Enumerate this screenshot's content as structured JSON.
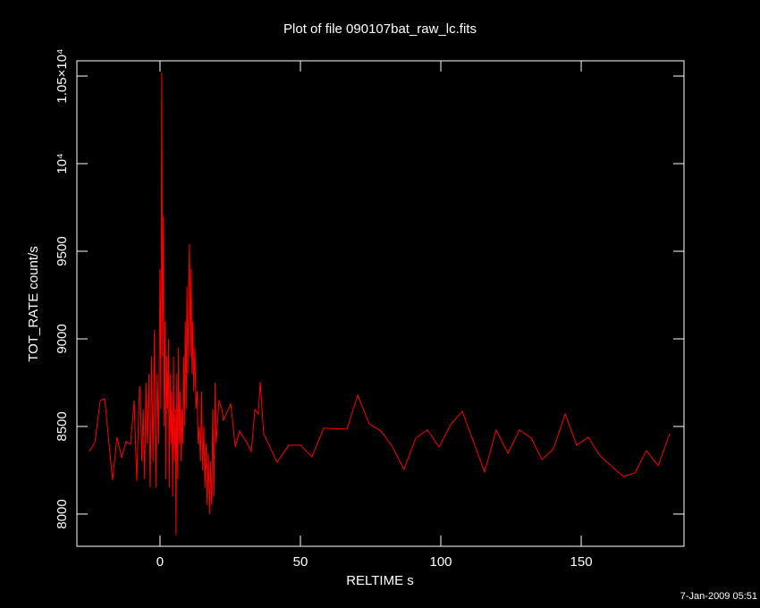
{
  "chart_data": {
    "type": "line",
    "title": "Plot of file 090107bat_raw_lc.fits",
    "x_label": "RELTIME  s",
    "y_label": "TOT_RATE  count/s",
    "footer": "7-Jan-2009 05:51",
    "xlim": [
      -29.6,
      186.6
    ],
    "ylim": [
      7816,
      10587
    ],
    "xticks": [
      0,
      50,
      100,
      150
    ],
    "yticks": [
      8000,
      8500,
      9000,
      9500,
      {
        "value": 10000,
        "label": "10⁴"
      },
      {
        "value": 10500,
        "label": "1.05×10⁴"
      }
    ],
    "series": [
      {
        "color": "#ff0000",
        "x": [
          -25.2,
          -23.2,
          -21.3,
          -19.7,
          -16.9,
          -15.3,
          -13.7,
          -12.1,
          -10.5,
          -9.2,
          -8.3,
          -7.3,
          -7.0,
          -6.5,
          -6.0,
          -5.5,
          -5.0,
          -4.5,
          -4.0,
          -3.5,
          -3.0,
          -2.5,
          -2.0,
          -1.5,
          -1.0,
          -0.5,
          0.0,
          0.3,
          0.6,
          0.9,
          1.2,
          1.5,
          1.8,
          2.1,
          2.4,
          2.7,
          3.0,
          3.3,
          3.6,
          3.9,
          4.2,
          4.5,
          4.8,
          5.1,
          5.5,
          5.7,
          6.0,
          6.3,
          6.6,
          6.9,
          7.2,
          7.5,
          7.8,
          8.1,
          8.4,
          8.7,
          9.0,
          9.3,
          9.6,
          9.9,
          10.2,
          10.5,
          10.8,
          11.1,
          11.4,
          11.7,
          12.0,
          12.4,
          12.8,
          13.2,
          13.6,
          14.0,
          14.4,
          14.8,
          15.2,
          15.6,
          16.0,
          16.4,
          16.8,
          17.2,
          17.6,
          18.0,
          18.4,
          18.8,
          19.2,
          19.6,
          20.0,
          20.4,
          21.0,
          22.0,
          22.6,
          25.2,
          26.8,
          28.3,
          30.9,
          32.5,
          33.8,
          35.0,
          35.7,
          36.9,
          41.7,
          45.9,
          50.0,
          54.1,
          58.3,
          66.6,
          70.4,
          74.5,
          78.7,
          82.8,
          86.9,
          91.1,
          95.2,
          99.4,
          103.5,
          107.6,
          115.6,
          119.7,
          123.9,
          128.0,
          132.2,
          136.0,
          140.1,
          144.3,
          148.4,
          152.5,
          156.7,
          165.0,
          169.1,
          173.2,
          177.4,
          181.5
        ],
        "values": [
          8357,
          8408,
          8648,
          8658,
          8194,
          8439,
          8321,
          8413,
          8398,
          8648,
          8189,
          8730,
          8700,
          8300,
          8600,
          8200,
          8750,
          8400,
          8800,
          8150,
          8900,
          8300,
          9050,
          8150,
          8800,
          8400,
          9400,
          8600,
          10520,
          8900,
          9700,
          8500,
          9100,
          8200,
          8900,
          8600,
          9000,
          8150,
          8800,
          8400,
          8700,
          8100,
          8900,
          8300,
          8600,
          7880,
          8800,
          8200,
          8950,
          8400,
          8700,
          8300,
          8600,
          8400,
          8900,
          8500,
          9100,
          8600,
          9300,
          8800,
          9250,
          9540,
          8900,
          9400,
          8800,
          9100,
          8700,
          8950,
          8600,
          8700,
          8400,
          8500,
          8300,
          8700,
          8250,
          8500,
          8150,
          8400,
          8050,
          8350,
          8000,
          8300,
          8050,
          8600,
          8100,
          8750,
          8400,
          8500,
          8650,
          8600,
          8536,
          8628,
          8383,
          8474,
          8408,
          8357,
          8597,
          8571,
          8755,
          8459,
          8296,
          8393,
          8393,
          8327,
          8490,
          8485,
          8679,
          8515,
          8474,
          8383,
          8255,
          8434,
          8480,
          8383,
          8510,
          8587,
          8240,
          8480,
          8347,
          8480,
          8434,
          8311,
          8372,
          8571,
          8393,
          8439,
          8332,
          8214,
          8235,
          8362,
          8276,
          8459
        ]
      }
    ]
  }
}
